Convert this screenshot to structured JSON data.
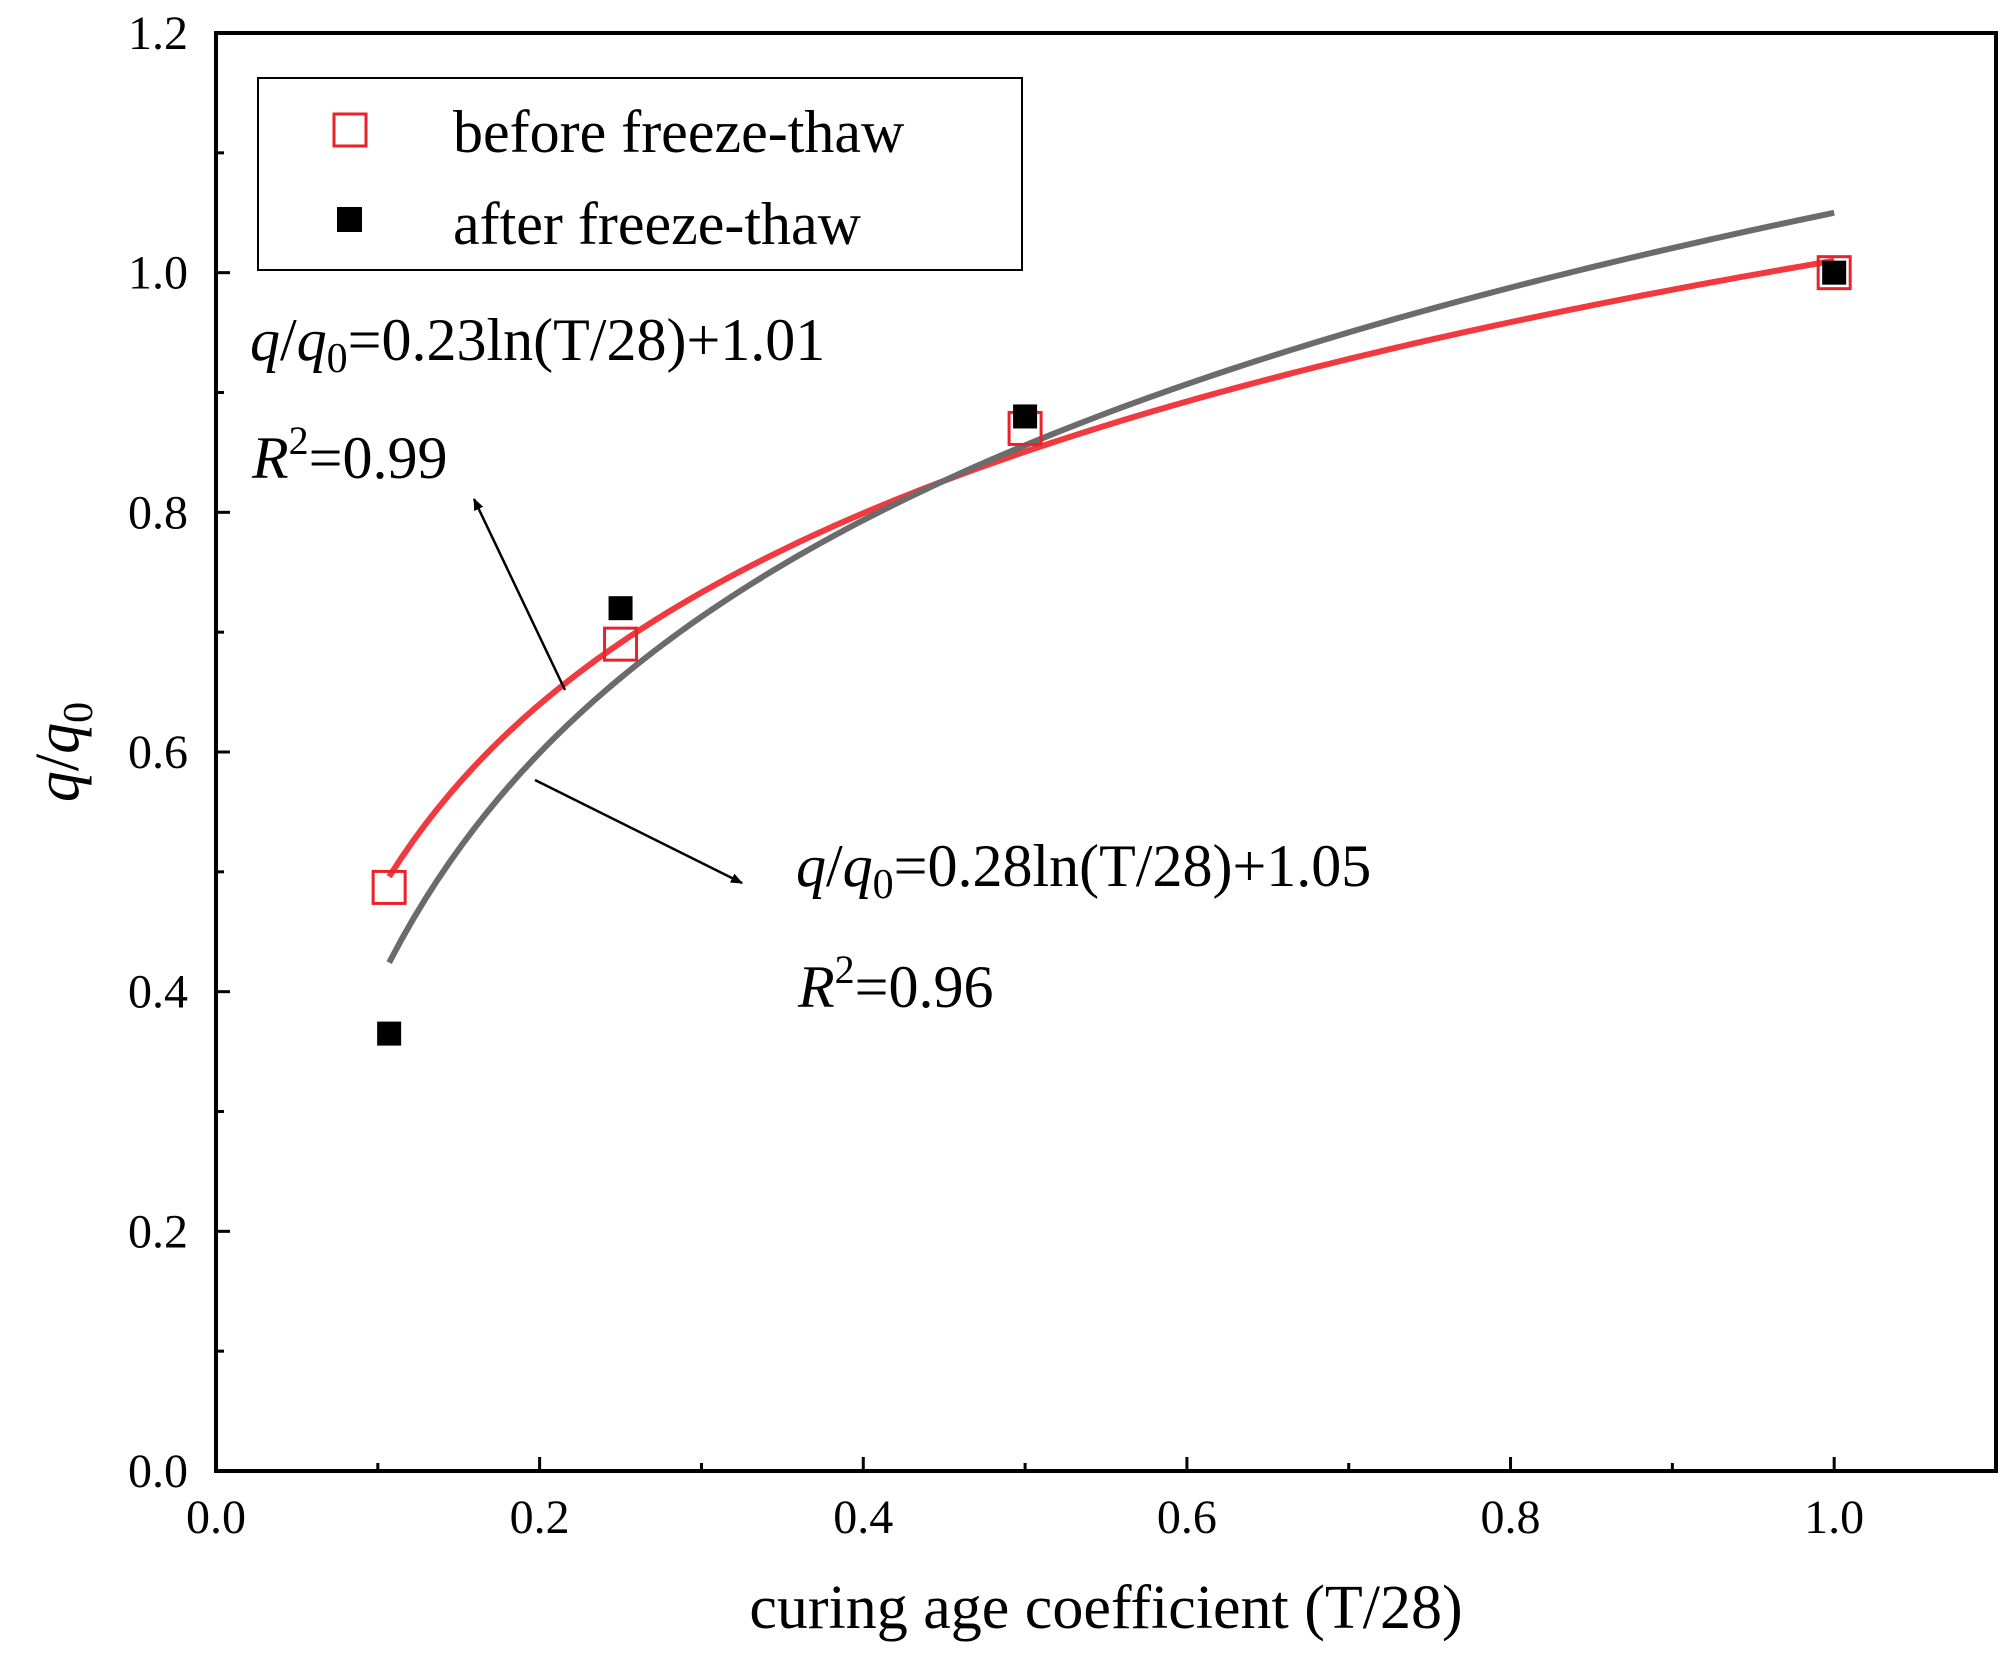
{
  "chart_data": {
    "type": "scatter",
    "title": "",
    "xlabel": "curing age coefficient (T/28)",
    "ylabel_parts": [
      "q",
      "/",
      "q",
      "0"
    ],
    "xlim": [
      0.0,
      1.1
    ],
    "ylim": [
      0.0,
      1.2
    ],
    "x_ticks": [
      0.0,
      0.2,
      0.4,
      0.6,
      0.8,
      1.0
    ],
    "x_tick_labels": [
      "0.0",
      "0.2",
      "0.4",
      "0.6",
      "0.8",
      "1.0"
    ],
    "y_ticks": [
      0.0,
      0.2,
      0.4,
      0.6,
      0.8,
      1.0,
      1.2
    ],
    "y_tick_labels": [
      "0.0",
      "0.2",
      "0.4",
      "0.6",
      "0.8",
      "1.0",
      "1.2"
    ],
    "legend_position": "top-left",
    "series": [
      {
        "name": "before freeze-thaw",
        "marker": "open-square",
        "color": "#e8212b",
        "x": [
          0.107,
          0.25,
          0.5,
          1.0
        ],
        "y": [
          0.487,
          0.69,
          0.87,
          1.0
        ],
        "fit": {
          "a": 0.23,
          "b": 1.01,
          "x_range": [
            0.107,
            1.0
          ],
          "color": "#f03a3f"
        },
        "equation_parts": [
          "q",
          "/",
          "q",
          "0",
          "=0.23ln(T/28)+1.01"
        ],
        "r2_parts": [
          "R",
          "2",
          "=0.99"
        ]
      },
      {
        "name": "after freeze-thaw",
        "marker": "filled-square",
        "color": "#000000",
        "x": [
          0.107,
          0.25,
          0.5,
          1.0
        ],
        "y": [
          0.365,
          0.72,
          0.88,
          1.0
        ],
        "fit": {
          "a": 0.28,
          "b": 1.05,
          "x_range": [
            0.107,
            1.0
          ],
          "color": "#6b6b6b"
        },
        "equation_parts": [
          "q",
          "/",
          "q",
          "0",
          "=0.28ln(T/28)+1.05"
        ],
        "r2_parts": [
          "R",
          "2",
          "=0.96"
        ]
      }
    ]
  }
}
